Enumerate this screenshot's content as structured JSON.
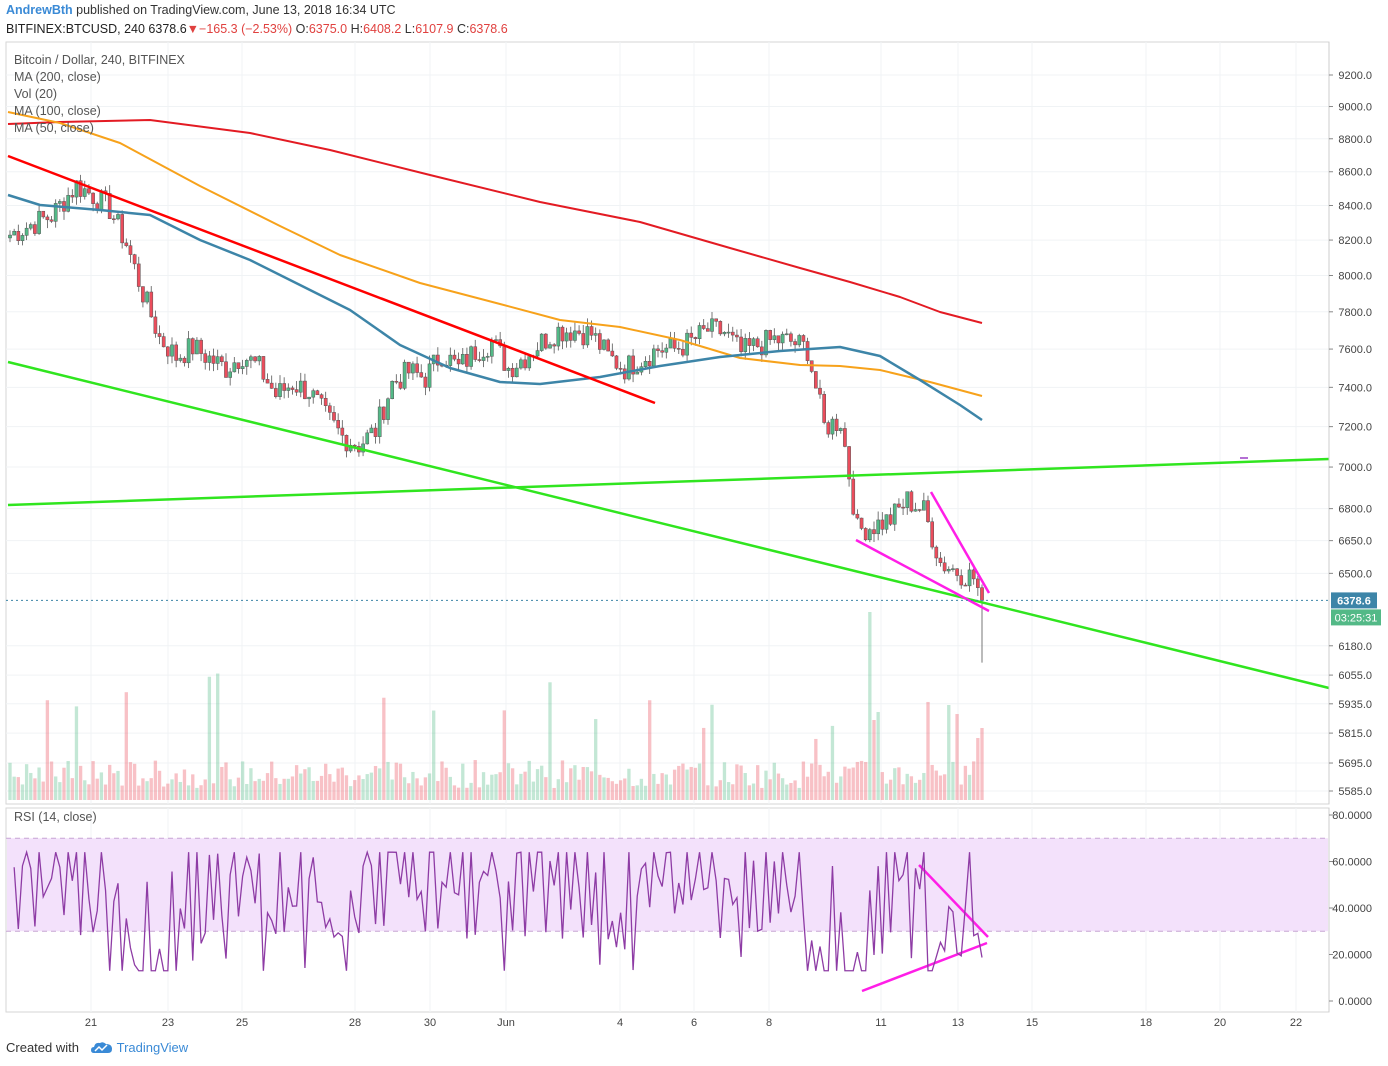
{
  "header": {
    "author": "AndrewBth",
    "published": " published on TradingView.com, June 13, 2018 16:34 UTC",
    "symbol": "BITFINEX:BTCUSD, 240",
    "last": "6378.6",
    "change": "−165.3 (−2.53%)",
    "open_label": "O:",
    "open": "6375.0",
    "high_label": "H:",
    "high": "6408.2",
    "low_label": "L:",
    "low": "6107.9",
    "close_label": "C:",
    "close": "6378.6"
  },
  "legend": {
    "title": "Bitcoin / Dollar, 240, BITFINEX",
    "ma200": "MA (200, close)",
    "vol": "Vol (20)",
    "ma100": "MA (100, close)",
    "ma50": "MA (50, close)",
    "rsi": "RSI (14, close)"
  },
  "footer": {
    "created_with": "Created with",
    "brand": "TradingView"
  },
  "colors": {
    "up": "#53b987",
    "down": "#eb4d5c",
    "ma200": "#e31b23",
    "ma100": "#f7a21b",
    "ma50": "#3d85a8",
    "trend_green": "#30e51f",
    "trend_red": "#ff0000",
    "pattern_magenta": "#ff1ee7",
    "rsi_line": "#8e3ca5",
    "rsi_band": "#f3e1fb"
  },
  "chart_data": {
    "type": "candlestick",
    "price_axis": {
      "ticks": [
        "9200.0",
        "9000.0",
        "8800.0",
        "8600.0",
        "8400.0",
        "8200.0",
        "8000.0",
        "7800.0",
        "7600.0",
        "7400.0",
        "7200.0",
        "7000.0",
        "6800.0",
        "6650.0",
        "6500.0",
        "6180.0",
        "6055.0",
        "5935.0",
        "5815.0",
        "5695.0",
        "5585.0"
      ],
      "scale": "log"
    },
    "last_price_label": "6378.6",
    "countdown_label": "03:25:31",
    "time_axis": {
      "ticks": [
        "21",
        "23",
        "25",
        "28",
        "30",
        "Jun",
        "4",
        "6",
        "8",
        "11",
        "13",
        "15",
        "18",
        "20",
        "22"
      ]
    },
    "rsi_axis": {
      "ticks": [
        "80.0000",
        "60.0000",
        "40.0000",
        "20.0000",
        "0.0000"
      ],
      "band": [
        30,
        70
      ]
    },
    "price_range": [
      5585,
      9200
    ],
    "annotations": [
      "descending red trendline",
      "lower green channel line",
      "horizontal green resistance near 7000",
      "magenta falling wedge",
      "magenta RSI bullish divergence"
    ]
  }
}
